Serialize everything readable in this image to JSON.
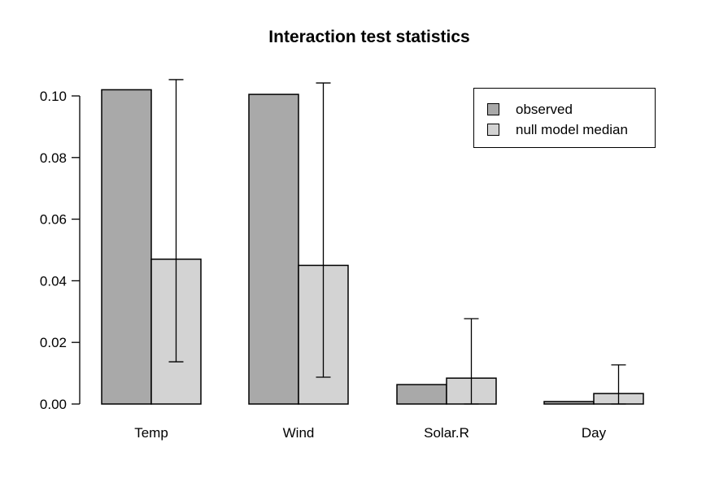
{
  "chart_data": {
    "type": "bar",
    "title": "Interaction test statistics",
    "categories": [
      "Temp",
      "Wind",
      "Solar.R",
      "Day"
    ],
    "series": [
      {
        "name": "observed",
        "color": "#a9a9a9",
        "values": [
          0.102,
          0.1005,
          0.0063,
          0.0008
        ]
      },
      {
        "name": "null model median",
        "color": "#d3d3d3",
        "values": [
          0.047,
          0.045,
          0.0084,
          0.0034
        ]
      }
    ],
    "error_bars": {
      "on_series": "null model median",
      "low": [
        0.0137,
        0.0087,
        0,
        0
      ],
      "high": [
        0.1053,
        0.1042,
        0.0277,
        0.0127
      ]
    },
    "xlabel": "",
    "ylabel": "",
    "ylim": [
      0,
      0.105
    ],
    "yticks": [
      0,
      0.02,
      0.04,
      0.06,
      0.08,
      0.1
    ],
    "ytick_labels": [
      "0.00",
      "0.02",
      "0.04",
      "0.06",
      "0.08",
      "0.10"
    ],
    "grid": false,
    "legend_position": "top-right",
    "axis_color": "#000000",
    "bar_border_color": "#000000",
    "background_color": "#ffffff"
  }
}
